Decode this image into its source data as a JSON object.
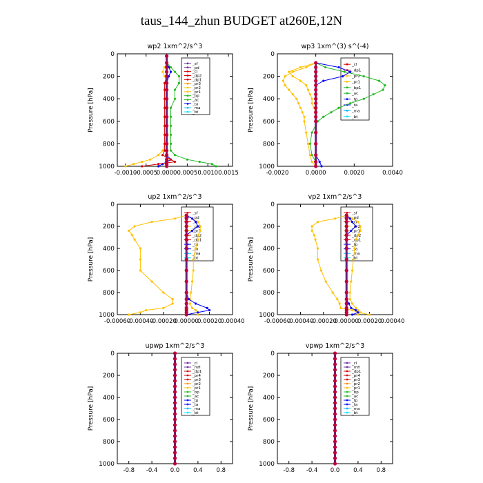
{
  "title": "taus_144_zhun  BUDGET at260E,12N",
  "chart_data": [
    {
      "type": "line",
      "title": "wp2  1xm^2/s^3",
      "ylabel": "Pressure [hPa]",
      "xlim": [
        -0.0012,
        0.0016
      ],
      "ylim": [
        1000,
        0
      ],
      "xticks": [
        -0.001,
        -0.0005,
        0.0,
        0.0005,
        0.001,
        0.0015
      ],
      "xtick_labels": [
        "-0.0010",
        "-0.0005",
        "0.0000",
        "0.0005",
        "0.0010",
        "0.0015"
      ],
      "yticks": [
        0,
        200,
        400,
        600,
        800,
        1000
      ],
      "legend": [
        "_sf",
        "_pd",
        "_cl",
        "_dp2",
        "_dp1",
        "_pr3",
        "_pr2",
        "_pr1",
        "_bp",
        "_ac",
        "_ta",
        "_ma",
        "_bt"
      ],
      "legend_colors": [
        "#7030a0",
        "#7030a0",
        "#d40000",
        "#d40000",
        "#d40000",
        "#ff8c00",
        "#ffc000",
        "#ffc000",
        "#22bb22",
        "#22bb22",
        "#0000ff",
        "#00bbff",
        "#00e5ff"
      ],
      "series_color_index": [
        6,
        8,
        10,
        2,
        0
      ],
      "series_y": [
        20,
        80,
        120,
        160,
        200,
        260,
        320,
        400,
        480,
        560,
        640,
        720,
        800,
        860,
        900,
        940,
        960,
        980,
        1000
      ],
      "series": [
        {
          "values": [
            0.0,
            0.0,
            -5e-05,
            -0.0001,
            -5e-05,
            0.0,
            0.0,
            0.0,
            0.0,
            0.0,
            0.0,
            0.0,
            -5e-05,
            -0.0001,
            -0.0002,
            -0.0004,
            -0.0006,
            -0.0008,
            -0.001
          ]
        },
        {
          "values": [
            0.0,
            0.0,
            0.0001,
            0.0002,
            0.0003,
            0.0003,
            0.0002,
            0.0002,
            0.0001,
            0.0001,
            0.0001,
            0.0001,
            0.0001,
            0.0001,
            0.0002,
            0.0005,
            0.0008,
            0.0011,
            0.0012
          ]
        },
        {
          "values": [
            0.0,
            0.0,
            5e-05,
            0.0001,
            5e-05,
            0.0,
            0.0,
            0.0,
            0.0,
            0.0,
            0.0,
            0.0,
            0.0,
            0.0,
            0.0,
            0.0001,
            0.0,
            -0.0001,
            -0.0002
          ]
        },
        {
          "values": [
            0.0,
            0.0,
            0.0,
            0.0,
            0.0,
            -5e-05,
            -5e-05,
            -5e-05,
            -5e-05,
            -5e-05,
            -5e-05,
            -5e-05,
            -5e-05,
            -5e-05,
            -0.0001,
            0.0001,
            0.0002,
            -0.0002,
            -0.0006
          ]
        },
        {
          "values": [
            0.0,
            0.0,
            0.0,
            0.0,
            0.0,
            0.0,
            0.0,
            0.0,
            0.0,
            0.0,
            0.0,
            0.0,
            0.0,
            0.0,
            0.0,
            0.0,
            0.0,
            0.0,
            0.0
          ]
        }
      ]
    },
    {
      "type": "line",
      "title": "wp3  1xm^(3) s^(-4)",
      "ylabel": "Pressure [hPa]",
      "xlim": [
        -0.002,
        0.004
      ],
      "ylim": [
        1000,
        0
      ],
      "xticks": [
        -0.002,
        0.0,
        0.002,
        0.004
      ],
      "xtick_labels": [
        "-0.0020",
        "0.0000",
        "0.0020",
        "0.0040"
      ],
      "yticks": [
        0,
        200,
        400,
        600,
        800,
        1000
      ],
      "legend": [
        "_cl",
        "_dp1",
        "_pr2",
        "_pr1",
        "_bp1",
        "_ac",
        "_tp",
        "_ta",
        "_ma",
        "_bt"
      ],
      "legend_colors": [
        "#d40000",
        "#d40000",
        "#ffc000",
        "#ffc000",
        "#22bb22",
        "#22bb22",
        "#0000ff",
        "#0000ff",
        "#00bbff",
        "#00e5ff"
      ],
      "series_color_index": [
        5,
        2,
        3,
        6,
        0
      ],
      "series_y": [
        80,
        120,
        160,
        200,
        240,
        280,
        320,
        360,
        400,
        440,
        480,
        520,
        560,
        600,
        700,
        800,
        900,
        960,
        1000
      ],
      "series": [
        {
          "values": [
            0.0,
            0.0005,
            0.0015,
            0.0025,
            0.0033,
            0.0036,
            0.0035,
            0.003,
            0.0025,
            0.0018,
            0.0012,
            0.0008,
            0.0004,
            0.0001,
            -0.0002,
            -0.0003,
            -0.0002,
            0.0,
            0.0
          ]
        },
        {
          "values": [
            0.0,
            -0.0005,
            -0.0012,
            -0.0016,
            -0.0017,
            -0.0016,
            -0.0014,
            -0.0012,
            -0.001,
            -0.0009,
            -0.0008,
            -0.0007,
            -0.0006,
            -0.0006,
            -0.0005,
            -0.0004,
            -0.0003,
            -0.0002,
            0.0
          ]
        },
        {
          "values": [
            0.0,
            -0.0008,
            -0.0014,
            -0.0012,
            -0.0008,
            -0.0005,
            -0.0004,
            -0.0003,
            -0.0002,
            -0.0002,
            -0.0001,
            0.0,
            0.0,
            0.0,
            0.0,
            0.0,
            0.0,
            0.0,
            0.0
          ]
        },
        {
          "values": [
            0.0,
            0.0012,
            0.0018,
            0.0014,
            0.0004,
            0.0,
            0.0,
            0.0,
            0.0,
            0.0,
            0.0,
            0.0,
            0.0,
            0.0,
            0.0,
            0.0,
            0.0,
            0.0002,
            0.0003
          ]
        },
        {
          "values": [
            0.0,
            0.0,
            0.0,
            0.0,
            0.0,
            0.0,
            0.0,
            0.0,
            0.0,
            0.0,
            0.0,
            0.0,
            0.0,
            0.0,
            0.0,
            0.0,
            0.0,
            0.0,
            0.0
          ]
        }
      ]
    },
    {
      "type": "line",
      "title": "up2  1xm^2/s^3",
      "ylabel": "Pressure [hPa]",
      "xlim": [
        -0.0006,
        0.0004
      ],
      "ylim": [
        1000,
        0
      ],
      "xticks": [
        -0.0006,
        -0.0004,
        -0.0002,
        0.0,
        0.0002,
        0.0004
      ],
      "xtick_labels": [
        "-0.00060",
        "-0.00040",
        "-0.00020",
        "0.00000",
        "0.00020",
        "0.00040"
      ],
      "yticks": [
        0,
        200,
        400,
        600,
        800,
        1000
      ],
      "legend": [
        "_sf",
        "_pd",
        "_cl",
        "_pr2",
        "_pr1",
        "_dp2",
        "_dp1",
        "_tp",
        "_ta",
        "_ma",
        "_bt"
      ],
      "legend_colors": [
        "#d40000",
        "#7030a0",
        "#d40000",
        "#ffc000",
        "#ffc000",
        "#d40000",
        "#d40000",
        "#0000ff",
        "#0000ff",
        "#00bbff",
        "#00e5ff"
      ],
      "series_color_index": [
        4,
        3,
        7,
        0
      ],
      "series_y": [
        100,
        130,
        160,
        200,
        240,
        280,
        320,
        400,
        500,
        600,
        700,
        800,
        860,
        900,
        940,
        960,
        980,
        1000
      ],
      "series": [
        {
          "values": [
            0.0,
            -0.0001,
            -0.0003,
            -0.00045,
            -0.0005,
            -0.00047,
            -0.00045,
            -0.0004,
            -0.0004,
            -0.0004,
            -0.0003,
            -0.0002,
            -0.00012,
            -0.00012,
            -0.0002,
            -0.00035,
            -0.0004,
            -0.0005
          ]
        },
        {
          "values": [
            0.0,
            5e-05,
            0.0001,
            0.00012,
            0.00012,
            0.0001,
            0.0001,
            8e-05,
            6e-05,
            6e-05,
            5e-05,
            4e-05,
            3e-05,
            3e-05,
            5e-05,
            8e-05,
            0.0001,
            0.0001
          ]
        },
        {
          "values": [
            0.0,
            5e-05,
            8e-05,
            0.0001,
            5e-05,
            0.0,
            0.0,
            0.0,
            0.0,
            0.0,
            0.0,
            0.0,
            2e-05,
            8e-05,
            0.00018,
            0.0002,
            0.0001,
            0.0
          ]
        },
        {
          "values": [
            0.0,
            0.0,
            0.0,
            0.0,
            0.0,
            0.0,
            0.0,
            0.0,
            0.0,
            0.0,
            0.0,
            0.0,
            0.0,
            0.0,
            0.0,
            0.0,
            0.0,
            0.0
          ]
        }
      ]
    },
    {
      "type": "line",
      "title": "vp2  1xm^2/s^3",
      "ylabel": "Pressure [hPa]",
      "xlim": [
        -0.0006,
        0.0004
      ],
      "ylim": [
        1000,
        0
      ],
      "xticks": [
        -0.0006,
        -0.0004,
        -0.0002,
        0.0,
        0.0002,
        0.0004
      ],
      "xtick_labels": [
        "-0.00060",
        "-0.00040",
        "-0.00020",
        "0.00000",
        "0.00020",
        "0.00040"
      ],
      "yticks": [
        0,
        200,
        400,
        600,
        800,
        1000
      ],
      "legend": [
        "_sf",
        "_pd",
        "_cl",
        "_pr2",
        "_pr1",
        "_dp2",
        "_dp1",
        "_tp",
        "_ta",
        "_ma",
        "_bt"
      ],
      "legend_colors": [
        "#d40000",
        "#7030a0",
        "#d40000",
        "#ffc000",
        "#ffc000",
        "#d40000",
        "#d40000",
        "#0000ff",
        "#0000ff",
        "#00bbff",
        "#00e5ff"
      ],
      "series_color_index": [
        4,
        3,
        7,
        0
      ],
      "series_y": [
        100,
        130,
        160,
        200,
        240,
        280,
        320,
        400,
        500,
        600,
        700,
        800,
        860,
        900,
        940,
        960,
        980,
        1000
      ],
      "series": [
        {
          "values": [
            0.0,
            -0.0001,
            -0.00025,
            -0.0003,
            -0.0003,
            -0.00028,
            -0.00027,
            -0.00025,
            -0.00025,
            -0.00022,
            -0.00018,
            -0.00012,
            -8e-05,
            -6e-05,
            -5e-05,
            5e-05,
            0.0001,
            0.0002
          ]
        },
        {
          "values": [
            0.0,
            5e-05,
            0.0001,
            0.00012,
            0.00012,
            0.0001,
            8e-05,
            7e-05,
            6e-05,
            5e-05,
            4e-05,
            3e-05,
            3e-05,
            5e-05,
            8e-05,
            0.0001,
            0.00012,
            0.0001
          ]
        },
        {
          "values": [
            0.0,
            3e-05,
            5e-05,
            8e-05,
            4e-05,
            0.0,
            0.0,
            0.0,
            0.0,
            0.0,
            0.0,
            0.0,
            0.0,
            2e-05,
            4e-05,
            8e-05,
            0.0001,
            5e-05
          ]
        },
        {
          "values": [
            0.0,
            0.0,
            0.0,
            0.0,
            0.0,
            0.0,
            0.0,
            0.0,
            0.0,
            0.0,
            0.0,
            0.0,
            0.0,
            0.0,
            0.0,
            0.0,
            0.0,
            0.0
          ]
        }
      ]
    },
    {
      "type": "line",
      "title": "upwp  1xm^2/s^3",
      "ylabel": "Pressure [hPa]",
      "xlim": [
        -1.0,
        1.0
      ],
      "ylim": [
        1000,
        0
      ],
      "xticks": [
        -0.8,
        -0.4,
        0.0,
        0.4,
        0.8
      ],
      "xtick_labels": [
        "-0.8",
        "-0.4",
        "0.0",
        "0.4",
        "0.8"
      ],
      "yticks": [
        0,
        200,
        400,
        600,
        800,
        1000
      ],
      "legend": [
        "_cl",
        "_mfl",
        "_dp1",
        "_pr4",
        "_pr3",
        "_pr2",
        "_pr1",
        "_bp",
        "_ac",
        "_tp",
        "_ta",
        "_ma",
        "_bt"
      ],
      "legend_colors": [
        "#7030a0",
        "#7030a0",
        "#d40000",
        "#d40000",
        "#d40000",
        "#ff8c00",
        "#ffc000",
        "#22bb22",
        "#22bb22",
        "#0000ff",
        "#0000ff",
        "#00bbff",
        "#00e5ff"
      ],
      "series_color_index": [
        0
      ],
      "series_y": [
        0,
        50,
        100,
        150,
        200,
        250,
        300,
        350,
        400,
        450,
        500,
        550,
        600,
        650,
        700,
        750,
        800,
        850,
        900,
        950,
        1000
      ],
      "series": [
        {
          "values": [
            0.0,
            0.0,
            0.0,
            0.0,
            0.0,
            0.0,
            0.0,
            0.0,
            0.0,
            0.0,
            0.0,
            0.0,
            0.0,
            0.0,
            0.0,
            0.0,
            0.0,
            0.0,
            0.0,
            0.0,
            0.0
          ]
        }
      ]
    },
    {
      "type": "line",
      "title": "vpwp  1xm^2/s^3",
      "ylabel": "Pressure [hPa]",
      "xlim": [
        -1.0,
        1.0
      ],
      "ylim": [
        1000,
        0
      ],
      "xticks": [
        -0.8,
        -0.4,
        0.0,
        0.4,
        0.8
      ],
      "xtick_labels": [
        "-0.8",
        "-0.4",
        "0.0",
        "0.4",
        "0.8"
      ],
      "yticks": [
        0,
        200,
        400,
        600,
        800,
        1000
      ],
      "legend": [
        "_cl",
        "_mfl",
        "_dp1",
        "_pr4",
        "_pr3",
        "_pr2",
        "_pr1",
        "_bp",
        "_ac",
        "_tp",
        "_ta",
        "_ma",
        "_bt"
      ],
      "legend_colors": [
        "#7030a0",
        "#7030a0",
        "#d40000",
        "#d40000",
        "#d40000",
        "#ff8c00",
        "#ffc000",
        "#22bb22",
        "#22bb22",
        "#0000ff",
        "#0000ff",
        "#00bbff",
        "#00e5ff"
      ],
      "series_color_index": [
        0
      ],
      "series_y": [
        0,
        50,
        100,
        150,
        200,
        250,
        300,
        350,
        400,
        450,
        500,
        550,
        600,
        650,
        700,
        750,
        800,
        850,
        900,
        950,
        1000
      ],
      "series": [
        {
          "values": [
            0.0,
            0.0,
            0.0,
            0.0,
            0.0,
            0.0,
            0.0,
            0.0,
            0.0,
            0.0,
            0.0,
            0.0,
            0.0,
            0.0,
            0.0,
            0.0,
            0.0,
            0.0,
            0.0,
            0.0,
            0.0
          ]
        }
      ]
    }
  ]
}
